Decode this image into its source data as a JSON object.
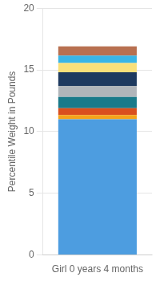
{
  "chart_data": {
    "type": "bar",
    "stacked": true,
    "categories": [
      "Girl 0 years 4 months"
    ],
    "ylabel": "Percentile Weight in Pounds",
    "series": [
      {
        "color": "#4d9de0",
        "values": [
          11.0
        ]
      },
      {
        "color": "#f5a31a",
        "values": [
          0.35
        ]
      },
      {
        "color": "#d94f1e",
        "values": [
          0.55
        ]
      },
      {
        "color": "#1a7a8a",
        "values": [
          0.9
        ]
      },
      {
        "color": "#b0b5ba",
        "values": [
          0.9
        ]
      },
      {
        "color": "#1e3a5f",
        "values": [
          1.1
        ]
      },
      {
        "color": "#f9e07a",
        "values": [
          0.75
        ]
      },
      {
        "color": "#3ab5e6",
        "values": [
          0.6
        ]
      },
      {
        "color": "#b87050",
        "values": [
          0.75
        ]
      }
    ],
    "ylim": [
      0,
      20
    ],
    "yticks": [
      0,
      5,
      10,
      15,
      20
    ],
    "grid": true
  }
}
